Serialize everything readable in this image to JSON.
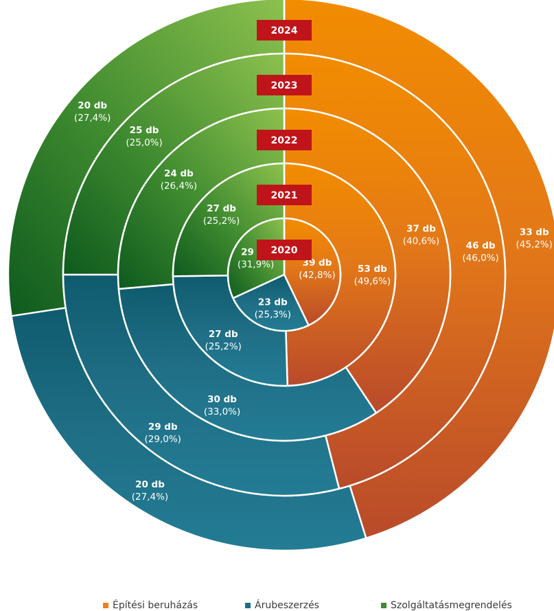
{
  "chart_data": {
    "type": "pie",
    "subtype": "multi-level donut (concentric rings, inner = 2020, outer = 2024)",
    "categories": [
      "Építési beruházás",
      "Árubeszerzés",
      "Szolgáltatásmegrendelés"
    ],
    "colors": {
      "Építési beruházás": "#e8821a",
      "Árubeszerzés": "#1f6e85",
      "Szolgáltatásmegrendelés": "#3f8a32",
      "year_box": "#c0141b"
    },
    "rings": [
      {
        "year": "2020",
        "values": [
          39,
          23,
          29
        ],
        "labels": [
          {
            "value": "39 db",
            "pct": "(42,8%)"
          },
          {
            "value": "23 db",
            "pct": "(25,3%)"
          },
          {
            "value": "29 db",
            "pct": "(31,9%)"
          }
        ]
      },
      {
        "year": "2021",
        "values": [
          53,
          27,
          27
        ],
        "labels": [
          {
            "value": "53 db",
            "pct": "(49,6%)"
          },
          {
            "value": "27 db",
            "pct": "(25,2%)"
          },
          {
            "value": "27 db",
            "pct": "(25,2%)"
          }
        ]
      },
      {
        "year": "2022",
        "values": [
          37,
          30,
          24
        ],
        "labels": [
          {
            "value": "37 db",
            "pct": "(40,6%)"
          },
          {
            "value": "30 db",
            "pct": "(33,0%)"
          },
          {
            "value": "24 db",
            "pct": "(26,4%)"
          }
        ]
      },
      {
        "year": "2023",
        "values": [
          46,
          29,
          25
        ],
        "labels": [
          {
            "value": "46 db",
            "pct": "(46,0%)"
          },
          {
            "value": "29 db",
            "pct": "(29,0%)"
          },
          {
            "value": "25 db",
            "pct": "(25,0%)"
          }
        ]
      },
      {
        "year": "2024",
        "values": [
          33,
          20,
          20
        ],
        "labels": [
          {
            "value": "33 db",
            "pct": "(45,2%)"
          },
          {
            "value": "20 db",
            "pct": "(27,4%)"
          },
          {
            "value": "20 db",
            "pct": "(27,4%)"
          }
        ]
      }
    ],
    "legend": {
      "placement": "bottom",
      "items": [
        "Építési beruházás",
        "Árubeszerzés",
        "Szolgáltatásmegrendelés"
      ]
    }
  }
}
